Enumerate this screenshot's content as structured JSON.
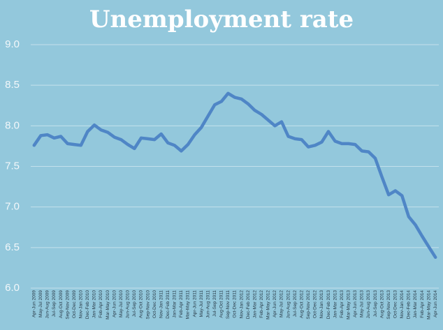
{
  "chart_data": {
    "type": "line",
    "title": "Unemployment rate",
    "categories": [
      "Apr-Jun 2009",
      "May-Jul 2009",
      "Jun-Aug 2009",
      "Jul-Sep 2009",
      "Aug-Oct 2009",
      "Sep-Nov 2009",
      "Oct-Dec 2009",
      "Nov-Jan 2010",
      "Dec-Feb 2010",
      "Jan-Mar 2010",
      "Feb-Apr 2010",
      "Mar-May 2010",
      "Apr-Jun 2010",
      "May-Jul 2010",
      "Jun-Aug 2010",
      "Jul-Sep 2010",
      "Aug-Oct 2010",
      "Sep-Nov 2010",
      "Oct-Dec 2010",
      "Nov-Jan 2011",
      "Dec-Feb 2011",
      "Jan-Mar 2011",
      "Feb-Apr 2011",
      "Mar-May 2011",
      "Apr-Jun 2011",
      "May-Jul 2011",
      "Jun-Aug 2011",
      "Jul-Sep 2011",
      "Aug-Oct 2011",
      "Sep-Nov 2011",
      "Oct-Dec 2011",
      "Nov-Jan 2012",
      "Dec-Feb 2012",
      "Jan-Mar 2012",
      "Feb-Apr 2012",
      "Mar-May 2012",
      "Apr-Jun 2012",
      "May-Jul 2012",
      "Jun-Aug 2012",
      "Jul-Sep 2012",
      "Aug-Oct 2012",
      "Sep-Nov 2012",
      "Oct-Dec 2012",
      "Nov-Jan 2013",
      "Dec-Feb 2013",
      "Jan-Mar 2013",
      "Feb-Apr 2013",
      "Mar-May 2013",
      "Apr-Jun 2013",
      "May-Jul 2013",
      "Jun-Aug 2013",
      "Jul-Sep 2013",
      "Aug-Oct 2013",
      "Sep-Nov 2013",
      "Oct-Dec 2013",
      "Nov-Jan 2014",
      "Dec-Feb 2014",
      "Jan-Mar 2014",
      "Feb-Apr 2014",
      "Mar-May 2014",
      "Apr-Jun 2014"
    ],
    "values": [
      7.76,
      7.88,
      7.89,
      7.85,
      7.87,
      7.78,
      7.77,
      7.76,
      7.93,
      8.01,
      7.95,
      7.92,
      7.86,
      7.83,
      7.77,
      7.72,
      7.85,
      7.84,
      7.83,
      7.9,
      7.79,
      7.76,
      7.69,
      7.77,
      7.89,
      7.98,
      8.12,
      8.26,
      8.3,
      8.4,
      8.35,
      8.33,
      8.27,
      8.19,
      8.14,
      8.07,
      8.0,
      8.05,
      7.87,
      7.84,
      7.83,
      7.74,
      7.76,
      7.8,
      7.93,
      7.81,
      7.78,
      7.78,
      7.77,
      7.69,
      7.68,
      7.6,
      7.37,
      7.15,
      7.2,
      7.14,
      6.88,
      6.78,
      6.64,
      6.51,
      6.38
    ],
    "color": "#4f86c6",
    "ylim": [
      6,
      9
    ],
    "yticks": [
      {
        "value": 6,
        "label": "6.0"
      },
      {
        "value": 6.5,
        "label": "6.5"
      },
      {
        "value": 7,
        "label": "7.0"
      },
      {
        "value": 7.5,
        "label": "7.5"
      },
      {
        "value": 8,
        "label": "8.0"
      },
      {
        "value": 8.5,
        "label": "8.5"
      },
      {
        "value": 9,
        "label": "9.0"
      }
    ],
    "grid": true
  }
}
